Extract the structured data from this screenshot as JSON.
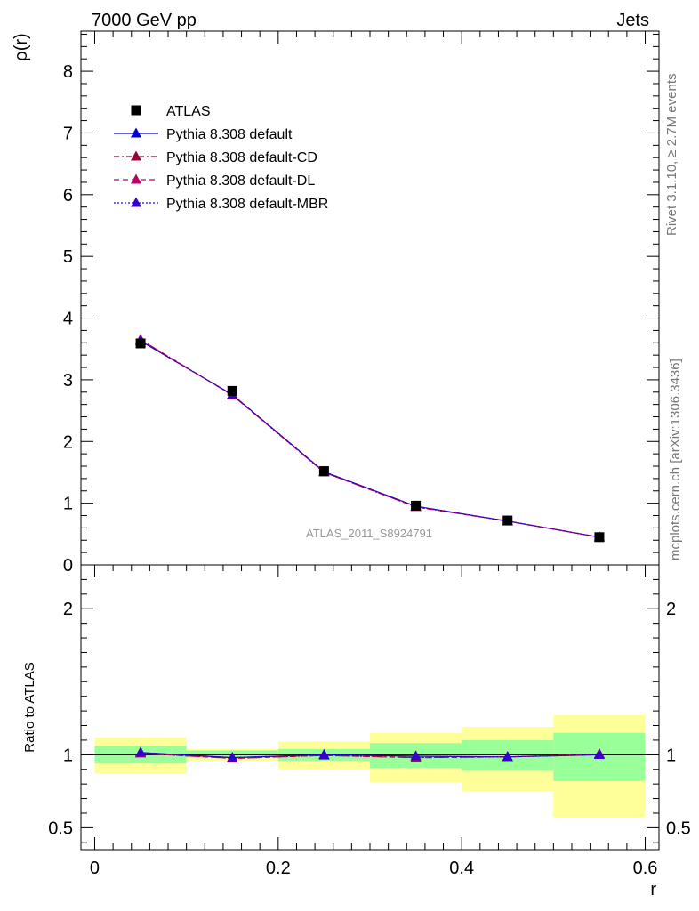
{
  "header": {
    "left": "7000 GeV pp",
    "right": "Jets"
  },
  "side_labels": {
    "rivet": "Rivet 3.1.10, ≥ 2.7M events",
    "mcplots": "mcplots.cern.ch [arXiv:1306.3436]"
  },
  "colors": {
    "atlas": "#000000",
    "default": "#0000cc",
    "default_cd": "#990033",
    "default_dl": "#bb0066",
    "default_mbr": "#3300cc",
    "band_inner": "#99ff99",
    "band_outer": "#ffff99"
  },
  "chart_data": [
    {
      "type": "line",
      "ylabel": "ρ(r)",
      "annotation": "ATLAS_2011_S8924791",
      "xlim": [
        -0.015,
        0.615
      ],
      "ylim": [
        0,
        8.65
      ],
      "yticks": [
        "0",
        "1",
        "2",
        "3",
        "4",
        "5",
        "6",
        "7",
        "8"
      ],
      "x": [
        0.05,
        0.15,
        0.25,
        0.35,
        0.45,
        0.55
      ],
      "legend": {
        "placement": "top-left",
        "entries": [
          "ATLAS",
          "Pythia 8.308 default",
          "Pythia 8.308 default-CD",
          "Pythia 8.308 default-DL",
          "Pythia 8.308 default-MBR"
        ]
      },
      "series": [
        {
          "name": "ATLAS",
          "values": [
            3.59,
            2.82,
            1.52,
            0.96,
            0.72,
            0.45
          ]
        },
        {
          "name": "Pythia 8.308 default",
          "values": [
            3.63,
            2.76,
            1.51,
            0.95,
            0.71,
            0.45
          ]
        },
        {
          "name": "Pythia 8.308 default-CD",
          "values": [
            3.65,
            2.75,
            1.5,
            0.94,
            0.71,
            0.45
          ]
        },
        {
          "name": "Pythia 8.308 default-DL",
          "values": [
            3.65,
            2.75,
            1.5,
            0.94,
            0.71,
            0.45
          ]
        },
        {
          "name": "Pythia 8.308 default-MBR",
          "values": [
            3.63,
            2.76,
            1.51,
            0.95,
            0.71,
            0.45
          ]
        }
      ]
    },
    {
      "type": "line",
      "ylabel": "Ratio to ATLAS",
      "xlabel": "r",
      "xlim": [
        -0.015,
        0.615
      ],
      "ylim": [
        0.35,
        2.3
      ],
      "yticks": [
        "0.5",
        "1",
        "2"
      ],
      "xticks": [
        "0",
        "0.2",
        "0.4",
        "0.6"
      ],
      "bins": [
        [
          0.0,
          0.1
        ],
        [
          0.1,
          0.2
        ],
        [
          0.2,
          0.3
        ],
        [
          0.3,
          0.4
        ],
        [
          0.4,
          0.5
        ],
        [
          0.5,
          0.6
        ]
      ],
      "band_inner": [
        [
          0.94,
          1.06
        ],
        [
          0.98,
          1.03
        ],
        [
          0.96,
          1.04
        ],
        [
          0.91,
          1.08
        ],
        [
          0.89,
          1.1
        ],
        [
          0.82,
          1.15
        ]
      ],
      "band_outer": [
        [
          0.87,
          1.12
        ],
        [
          0.96,
          1.04
        ],
        [
          0.9,
          1.09
        ],
        [
          0.81,
          1.15
        ],
        [
          0.75,
          1.19
        ],
        [
          0.57,
          1.27
        ]
      ],
      "series": [
        {
          "name": "Pythia 8.308 default",
          "values": [
            1.015,
            0.98,
            1.0,
            0.99,
            0.985,
            1.0
          ]
        },
        {
          "name": "Pythia 8.308 default-CD",
          "values": [
            1.01,
            0.975,
            0.995,
            0.98,
            0.985,
            1.005
          ]
        },
        {
          "name": "Pythia 8.308 default-DL",
          "values": [
            1.01,
            0.975,
            0.995,
            0.98,
            0.985,
            1.005
          ]
        },
        {
          "name": "Pythia 8.308 default-MBR",
          "values": [
            1.015,
            0.98,
            1.0,
            0.99,
            0.985,
            1.0
          ]
        }
      ]
    }
  ]
}
